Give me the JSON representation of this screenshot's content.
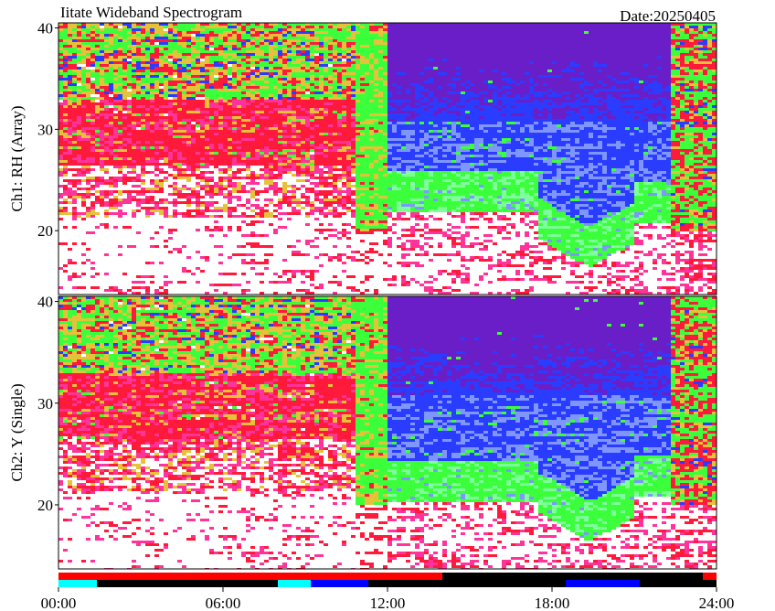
{
  "header": {
    "title": "Iitate Wideband Spectrogram",
    "date": "Date:20250405"
  },
  "chart_data": [
    {
      "type": "spectrogram",
      "ylabel": "Ch1: RH (Array)",
      "xlim": [
        0,
        24
      ],
      "ylim": [
        13.7,
        40.5
      ],
      "yticks": [
        20,
        30,
        40
      ]
    },
    {
      "type": "spectrogram",
      "ylabel": "Ch2: Y (Single)",
      "xlim": [
        0,
        24
      ],
      "ylim": [
        13.7,
        40.5
      ],
      "yticks": [
        20,
        30,
        40
      ]
    },
    {
      "type": "timeline",
      "xlim": [
        0,
        24
      ],
      "xticks": [
        {
          "value": 0,
          "label": "00:00"
        },
        {
          "value": 6,
          "label": "06:00"
        },
        {
          "value": 12,
          "label": "12:00"
        },
        {
          "value": 18,
          "label": "18:00"
        },
        {
          "value": 24,
          "label": "24:00"
        }
      ],
      "rows": [
        [
          {
            "start": 0,
            "end": 14,
            "color": "#ff0000"
          },
          {
            "start": 14,
            "end": 23.5,
            "color": "#000000"
          },
          {
            "start": 23.5,
            "end": 24,
            "color": "#ff0000"
          }
        ],
        [
          {
            "start": 0,
            "end": 1.4,
            "color": "#00ffff"
          },
          {
            "start": 1.4,
            "end": 8,
            "color": "#000000"
          },
          {
            "start": 8,
            "end": 9.2,
            "color": "#00ffff"
          },
          {
            "start": 9.2,
            "end": 11.3,
            "color": "#0000ff"
          },
          {
            "start": 11.3,
            "end": 18.5,
            "color": "#000000"
          },
          {
            "start": 18.5,
            "end": 21.2,
            "color": "#0000ff"
          },
          {
            "start": 21.2,
            "end": 24,
            "color": "#000000"
          }
        ]
      ]
    }
  ]
}
